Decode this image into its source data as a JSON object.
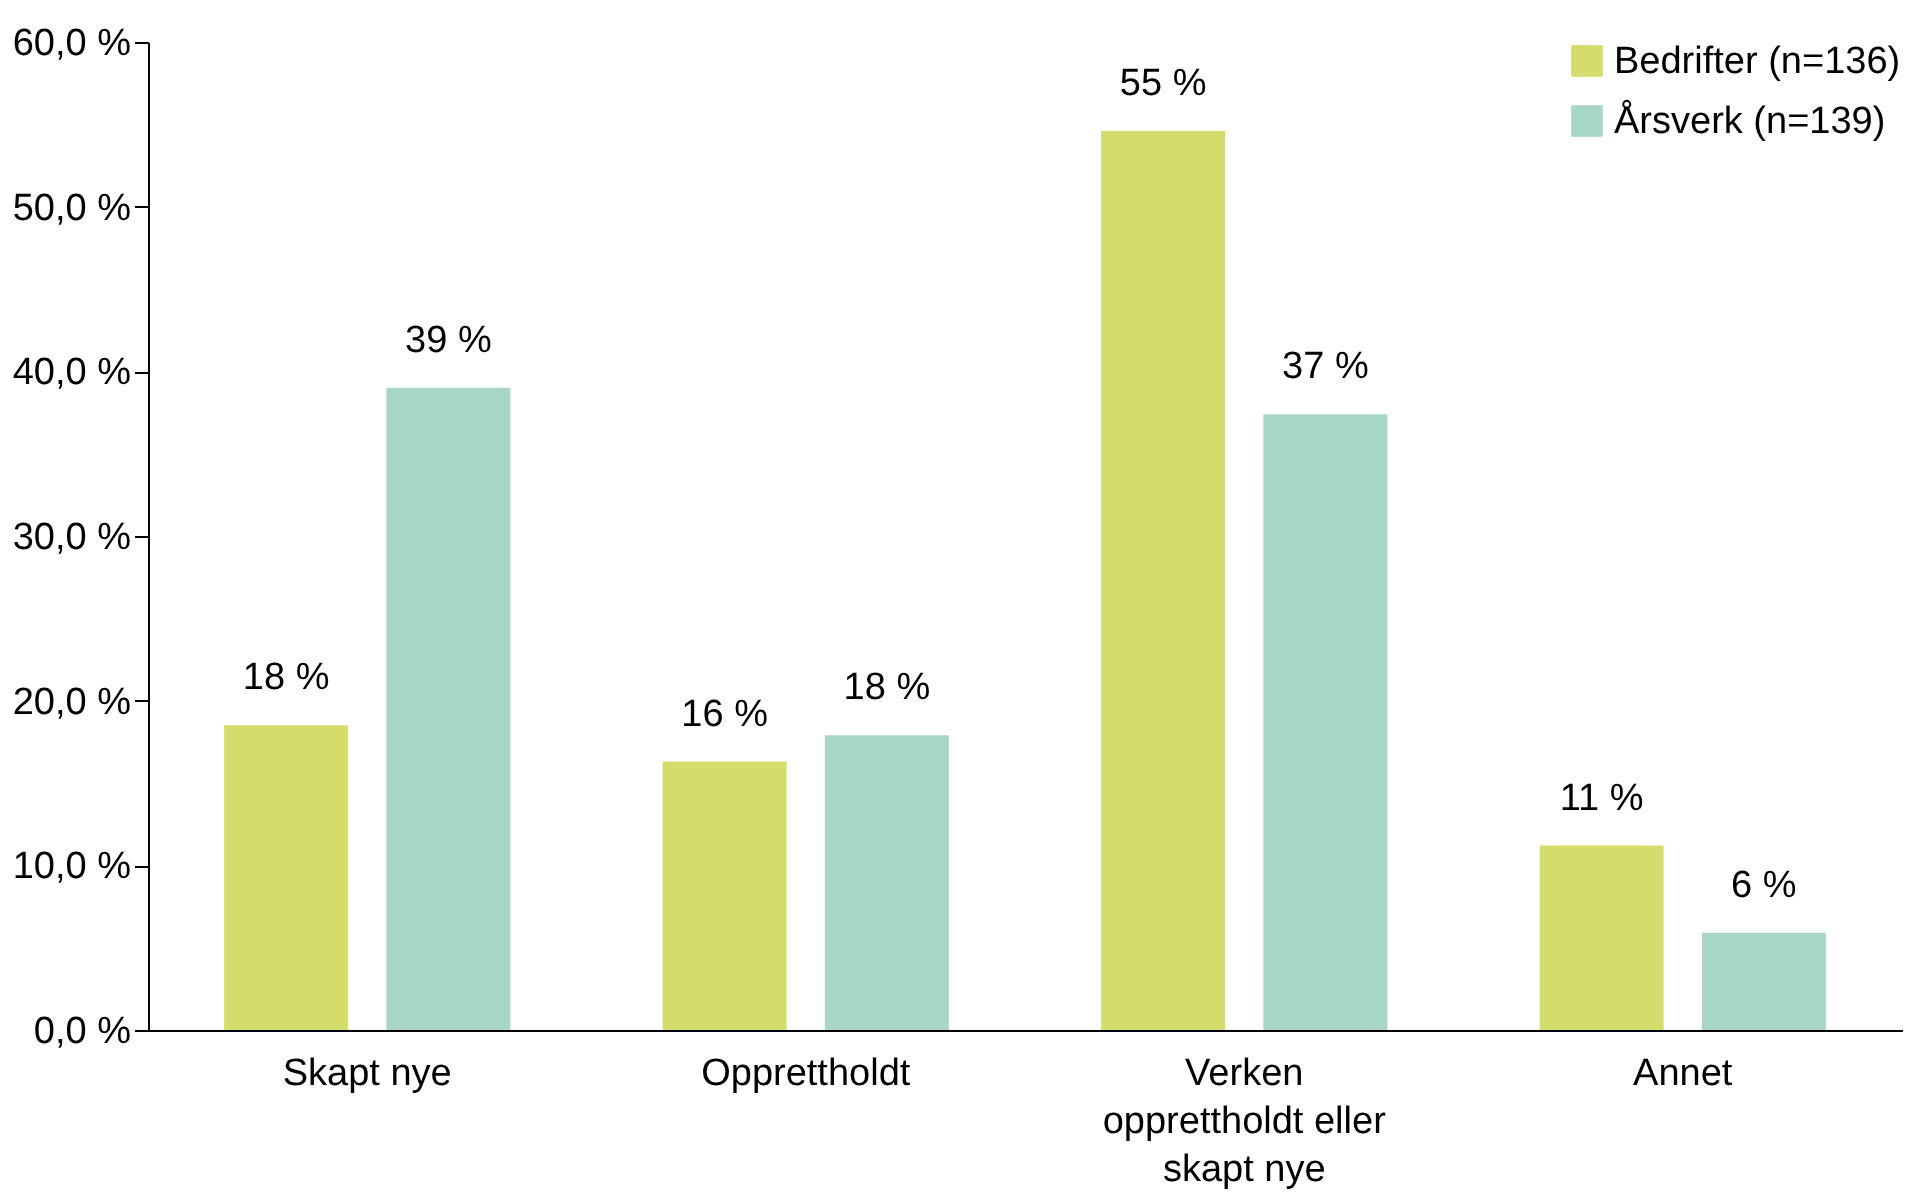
{
  "chart_data": {
    "type": "bar",
    "categories": [
      "Skapt nye",
      "Opprettholdt",
      "Verken opprettholdt eller skapt nye",
      "Annet"
    ],
    "series": [
      {
        "name": "Bedrifter (n=136)",
        "color": "#d4dd6b",
        "values": [
          18.5,
          16.3,
          54.6,
          11.2
        ],
        "value_labels": [
          "18 %",
          "16 %",
          "55 %",
          "11 %"
        ]
      },
      {
        "name": "Årsverk (n=139)",
        "color": "#a8d6c6",
        "values": [
          39.0,
          17.9,
          37.4,
          5.9
        ],
        "value_labels": [
          "39 %",
          "18 %",
          "37 %",
          "6 %"
        ]
      }
    ],
    "ylim": [
      0,
      60
    ],
    "yticks": [
      {
        "value": 0,
        "label": "0,0 %"
      },
      {
        "value": 10,
        "label": "10,0 %"
      },
      {
        "value": 20,
        "label": "20,0 %"
      },
      {
        "value": 30,
        "label": "30,0 %"
      },
      {
        "value": 40,
        "label": "40,0 %"
      },
      {
        "value": 50,
        "label": "50,0 %"
      },
      {
        "value": 60,
        "label": "60,0 %"
      }
    ],
    "grid": false,
    "legend": "top right"
  }
}
